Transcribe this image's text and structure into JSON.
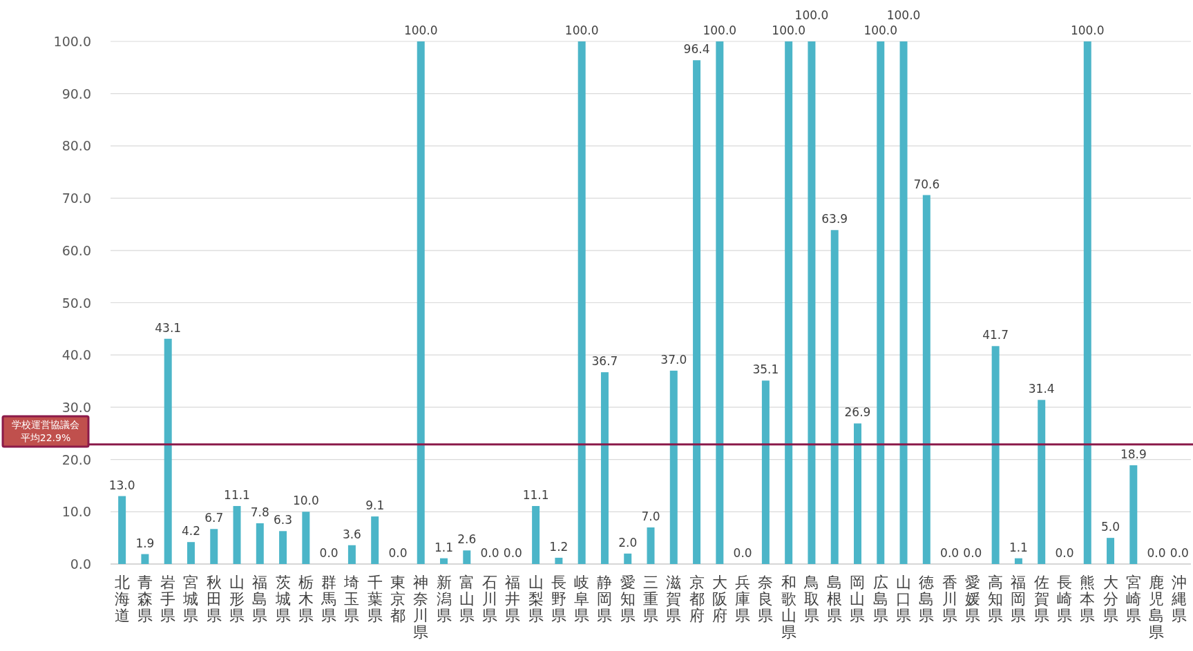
{
  "chart_data": {
    "type": "bar",
    "color": "#4bb5c8",
    "categories": [
      "北海道",
      "青森県",
      "岩手県",
      "宮城県",
      "秋田県",
      "山形県",
      "福島県",
      "茨城県",
      "栃木県",
      "群馬県",
      "埼玉県",
      "千葉県",
      "東京都",
      "神奈川県",
      "新潟県",
      "富山県",
      "石川県",
      "福井県",
      "山梨県",
      "長野県",
      "岐阜県",
      "静岡県",
      "愛知県",
      "三重県",
      "滋賀県",
      "京都府",
      "大阪府",
      "兵庫県",
      "奈良県",
      "和歌山県",
      "鳥取県",
      "島根県",
      "岡山県",
      "広島県",
      "山口県",
      "徳島県",
      "香川県",
      "愛媛県",
      "高知県",
      "福岡県",
      "佐賀県",
      "長崎県",
      "熊本県",
      "大分県",
      "宮崎県",
      "鹿児島県",
      "沖縄県"
    ],
    "values": [
      13.0,
      1.9,
      43.1,
      4.2,
      6.7,
      11.1,
      7.8,
      6.3,
      10.0,
      0.0,
      3.6,
      9.1,
      0.0,
      100.0,
      1.1,
      2.6,
      0.0,
      0.0,
      11.1,
      1.2,
      100.0,
      36.7,
      2.0,
      7.0,
      37.0,
      96.4,
      100.0,
      0.0,
      35.1,
      100.0,
      100.0,
      63.9,
      26.9,
      100.0,
      100.0,
      70.6,
      0.0,
      0.0,
      41.7,
      1.1,
      31.4,
      0.0,
      100.0,
      5.0,
      18.9,
      0.0,
      0.0
    ],
    "value_labels": [
      "13.0",
      "1.9",
      "43.1",
      "4.2",
      "6.7",
      "11.1",
      "7.8",
      "6.3",
      "10.0",
      "0.0",
      "3.6",
      "9.1",
      "0.0",
      "100.0",
      "1.1",
      "2.6",
      "0.0",
      "0.0",
      "11.1",
      "1.2",
      "100.0",
      "36.7",
      "2.0",
      "7.0",
      "37.0",
      "96.4",
      "100.0",
      "0.0",
      "35.1",
      "100.0",
      "100.0",
      "63.9",
      "26.9",
      "100.0",
      "100.0",
      "70.6",
      "0.0",
      "0.0",
      "41.7",
      "1.1",
      "31.4",
      "0.0",
      "100.0",
      "5.0",
      "18.9",
      "0.0",
      "0.0"
    ],
    "ylim": [
      0,
      100
    ],
    "yticks": [
      {
        "value": 0,
        "label": "0.0"
      },
      {
        "value": 10,
        "label": "10.0"
      },
      {
        "value": 20,
        "label": "20.0"
      },
      {
        "value": 30,
        "label": "30.0"
      },
      {
        "value": 40,
        "label": "40.0"
      },
      {
        "value": 50,
        "label": "50.0"
      },
      {
        "value": 60,
        "label": "60.0"
      },
      {
        "value": 70,
        "label": "70.0"
      },
      {
        "value": 80,
        "label": "80.0"
      },
      {
        "value": 90,
        "label": "90.0"
      },
      {
        "value": 100,
        "label": "100.0"
      }
    ],
    "grid": "y",
    "ref_lines": [
      {
        "axis": "y",
        "value": 22.9,
        "label": "学校運営協議会平均22.9%",
        "color": "#8b1a4a"
      }
    ]
  }
}
